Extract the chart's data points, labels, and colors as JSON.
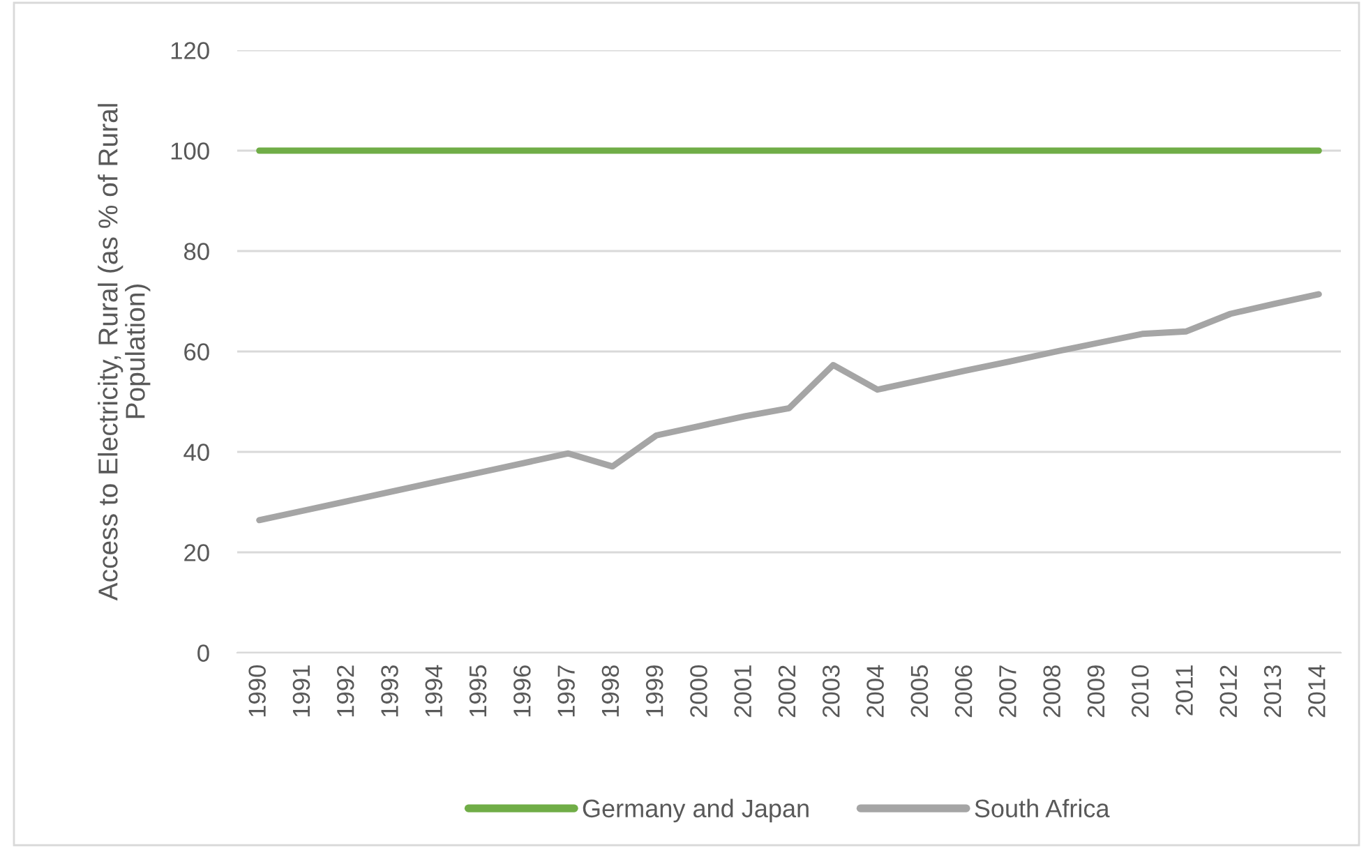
{
  "chart_data": {
    "type": "line",
    "ylabel": "Access to Electricity, Rural (as % of Rural\nPopulation)",
    "categories": [
      "1990",
      "1991",
      "1992",
      "1993",
      "1994",
      "1995",
      "1996",
      "1997",
      "1998",
      "1999",
      "2000",
      "2001",
      "2002",
      "2003",
      "2004",
      "2005",
      "2006",
      "2007",
      "2008",
      "2009",
      "2010",
      "2011",
      "2012",
      "2013",
      "2014"
    ],
    "series": [
      {
        "name": "Germany and Japan",
        "color": "#70ad47",
        "values": [
          100,
          100,
          100,
          100,
          100,
          100,
          100,
          100,
          100,
          100,
          100,
          100,
          100,
          100,
          100,
          100,
          100,
          100,
          100,
          100,
          100,
          100,
          100,
          100,
          100
        ]
      },
      {
        "name": "South Africa",
        "color": "#a5a5a5",
        "values": [
          26.4,
          28.3,
          30.2,
          32.1,
          34.0,
          35.9,
          37.8,
          39.7,
          37.1,
          43.3,
          45.2,
          47.1,
          48.7,
          57.3,
          52.4,
          54.3,
          56.2,
          58.0,
          59.9,
          61.7,
          63.5,
          64.0,
          67.5,
          69.5,
          71.4
        ]
      }
    ],
    "ylim": [
      0,
      120
    ],
    "yticks": [
      0,
      20,
      40,
      60,
      80,
      100,
      120
    ],
    "grid": "y",
    "legend": "bottom",
    "marker": "none",
    "line_style": "solid"
  }
}
